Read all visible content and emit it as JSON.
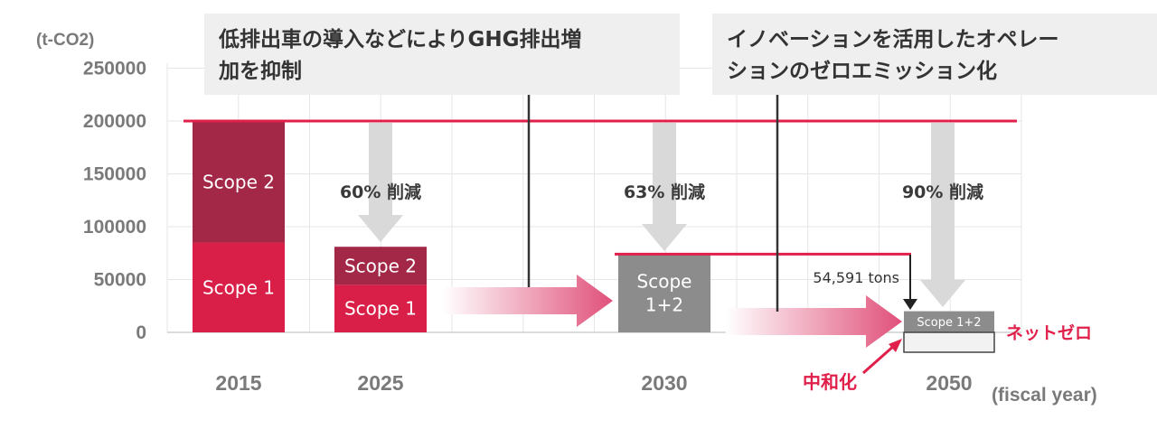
{
  "chart_data": {
    "type": "bar",
    "unit_label": "(t-CO2)",
    "xlabel": "(fiscal year)",
    "yticks": [
      0,
      50000,
      100000,
      150000,
      200000,
      250000
    ],
    "ylim": [
      0,
      250000
    ],
    "grid": true,
    "categories": [
      "2015",
      "2025",
      "2030",
      "2050"
    ],
    "bars": [
      {
        "year": "2015",
        "segments": [
          {
            "label": "Scope 1",
            "value": 85000,
            "color": "#d91e48"
          },
          {
            "label": "Scope 2",
            "value": 115000,
            "color": "#a32848"
          }
        ]
      },
      {
        "year": "2025",
        "segments": [
          {
            "label": "Scope 1",
            "value": 45000,
            "color": "#d91e48"
          },
          {
            "label": "Scope 2",
            "value": 36000,
            "color": "#a32848"
          }
        ]
      },
      {
        "year": "2030",
        "segments": [
          {
            "label": "Scope\n1+2",
            "value": 74000,
            "color": "#8c8c8c"
          }
        ]
      },
      {
        "year": "2050",
        "segments": [
          {
            "label": "Scope 1+2",
            "value": 20000,
            "color": "#8c8c8c"
          }
        ]
      }
    ],
    "baseline": {
      "value": 200000,
      "color": "#e0204a"
    },
    "target_2030": {
      "value": 74000,
      "color": "#e0204a"
    },
    "reductions": [
      {
        "year": "2025",
        "label": "60% 削減"
      },
      {
        "year": "2030",
        "label": "63% 削減"
      },
      {
        "year": "2050",
        "label": "90% 削減"
      }
    ],
    "callouts": [
      {
        "lines": [
          "低排出車の導入などによりGHG排出増",
          "加を抑制"
        ]
      },
      {
        "lines": [
          "イノベーションを活用したオペレー",
          "ションのゼロエミッション化"
        ]
      }
    ],
    "annotations": {
      "tons": "54,591 tons",
      "net_zero": "ネットゼロ",
      "neutralization": "中和化"
    }
  }
}
